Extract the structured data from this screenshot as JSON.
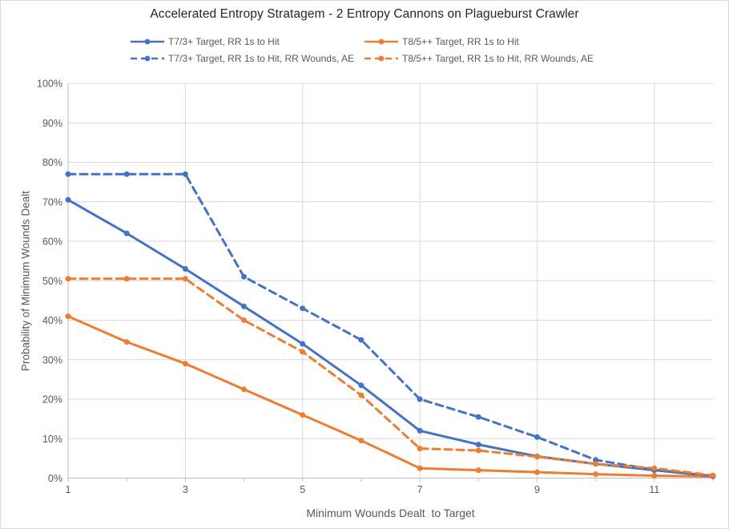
{
  "window": {
    "background": "#FFFFFF",
    "border_color": "#D9D9D9"
  },
  "chart_data": {
    "type": "line",
    "title": "Accelerated Entropy Stratagem - 2 Entropy Cannons on Plagueburst Crawler",
    "xlabel": "Minimum Wounds Dealt  to Target",
    "ylabel": "Probability of Minimum Wounds Dealt",
    "x": [
      1,
      2,
      3,
      4,
      5,
      6,
      7,
      8,
      9,
      10,
      11,
      12
    ],
    "x_tick_labels": [
      "1",
      "3",
      "5",
      "7",
      "9",
      "11"
    ],
    "x_label_interval": 2,
    "y_tick_labels": [
      "0%",
      "10%",
      "20%",
      "30%",
      "40%",
      "50%",
      "60%",
      "70%",
      "80%",
      "90%",
      "100%"
    ],
    "ylim": [
      0,
      100
    ],
    "y_step": 10,
    "grid": true,
    "legend_position": "top",
    "legend_rows": [
      [
        0,
        1
      ],
      [
        2,
        3
      ]
    ],
    "series": [
      {
        "name": "T7/3+ Target, RR 1s to Hit",
        "color": "#4472C4",
        "style": "solid",
        "values": [
          70.5,
          62,
          53,
          43.5,
          34,
          23.5,
          12,
          8.5,
          5.5,
          3.6,
          2,
          0.5
        ]
      },
      {
        "name": "T8/5++ Target, RR 1s to Hit",
        "color": "#ED7D31",
        "style": "solid",
        "values": [
          41,
          34.5,
          29,
          22.5,
          16,
          9.5,
          2.5,
          2,
          1.5,
          1,
          0.6,
          0.4
        ]
      },
      {
        "name": "T7/3+ Target, RR 1s to Hit, RR Wounds, AE",
        "color": "#4472C4",
        "style": "dashed",
        "values": [
          77,
          77,
          77,
          51,
          43,
          35,
          20,
          15.5,
          10.4,
          4.6,
          2.1,
          0.5
        ]
      },
      {
        "name": "T8/5++ Target, RR 1s to Hit, RR Wounds, AE",
        "color": "#ED7D31",
        "style": "dashed",
        "values": [
          50.5,
          50.5,
          50.5,
          40,
          32,
          21,
          7.5,
          7,
          5.4,
          3.6,
          2.5,
          0.7
        ]
      }
    ],
    "colors": {
      "blue": "#4472C4",
      "orange": "#ED7D31",
      "gridline": "#D9D9D9",
      "axis_line": "#BFBFBF",
      "tick_text": "#595959",
      "axis_title_text": "#595959",
      "title_text": "#262626"
    }
  }
}
